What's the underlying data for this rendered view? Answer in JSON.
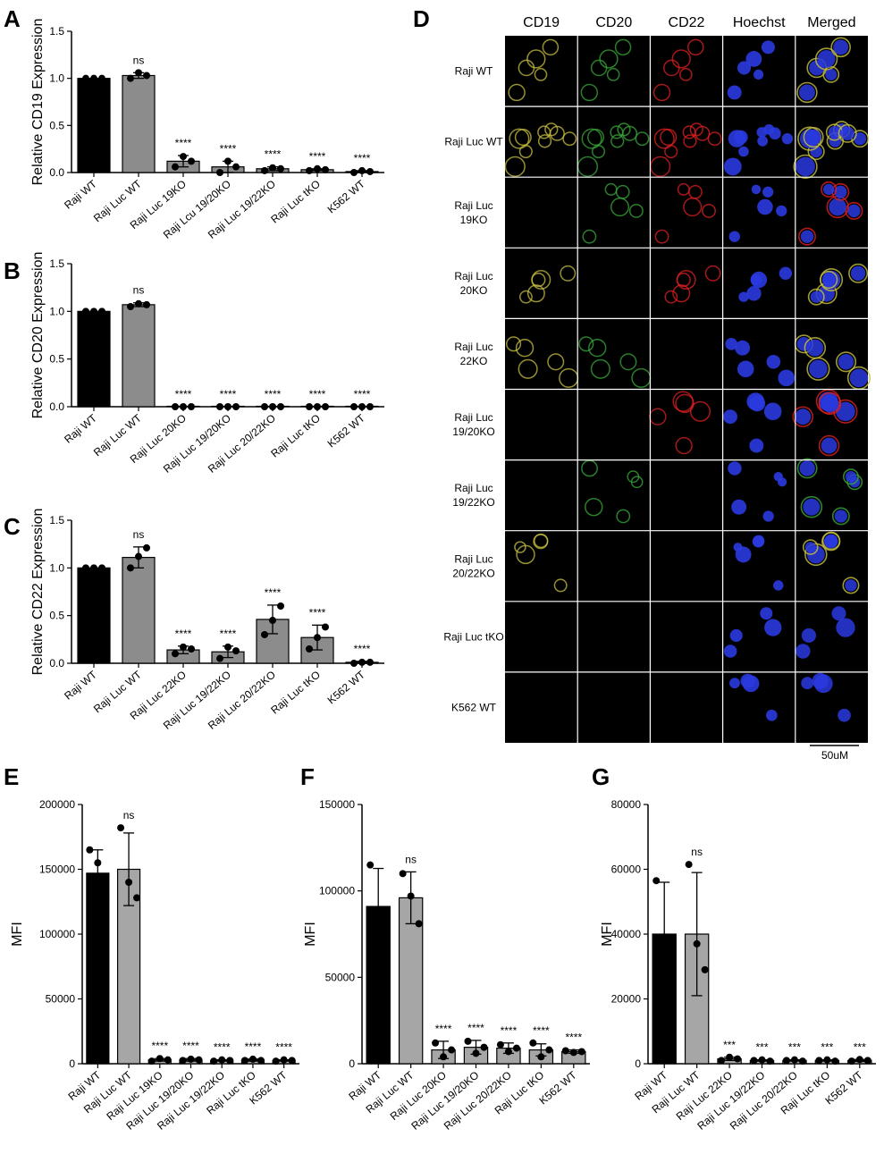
{
  "chart_data": [
    {
      "panel": "A",
      "type": "bar",
      "ylabel": "Relative CD19  Expression",
      "ylim": [
        0,
        1.5
      ],
      "yticks": [
        "0.0",
        "0.5",
        "1.0",
        "1.5"
      ],
      "categories": [
        "Raji WT",
        "Raji Luc WT",
        "Raji Luc 19KO",
        "Raji Lcu 19/20KO",
        "Raji Luc 19/22KO",
        "Raji Luc tKO",
        "K562 WT"
      ],
      "values": [
        1.0,
        1.03,
        0.12,
        0.06,
        0.04,
        0.03,
        0.01
      ],
      "errors": [
        0.0,
        0.03,
        0.06,
        0.06,
        0.02,
        0.01,
        0.01
      ],
      "points": [
        [
          1.0,
          1.0,
          1.0
        ],
        [
          1.0,
          1.06,
          1.03
        ],
        [
          0.06,
          0.17,
          0.12
        ],
        [
          0.0,
          0.12,
          0.06
        ],
        [
          0.02,
          0.05,
          0.04
        ],
        [
          0.02,
          0.04,
          0.03
        ],
        [
          0.0,
          0.02,
          0.01
        ]
      ],
      "significance": [
        "",
        "ns",
        "****",
        "****",
        "****",
        "****",
        "****"
      ],
      "colors": [
        "#000000",
        "#8c8c8c",
        "#8c8c8c",
        "#8c8c8c",
        "#8c8c8c",
        "#8c8c8c",
        "#8c8c8c"
      ]
    },
    {
      "panel": "B",
      "type": "bar",
      "ylabel": "Relative  CD20  Expression",
      "ylim": [
        0,
        1.5
      ],
      "yticks": [
        "0.0",
        "0.5",
        "1.0",
        "1.5"
      ],
      "categories": [
        "Raji WT",
        "Raji Luc WT",
        "Raji Luc 20KO",
        "Raji Luc 19/20KO",
        "Raji Luc 20/22KO",
        "Raji Luc tKO",
        "K562 WT"
      ],
      "values": [
        1.0,
        1.07,
        0.0,
        0.0,
        0.0,
        0.0,
        0.0
      ],
      "errors": [
        0.0,
        0.02,
        0.0,
        0.0,
        0.0,
        0.0,
        0.0
      ],
      "points": [
        [
          1.0,
          1.0,
          1.0
        ],
        [
          1.05,
          1.08,
          1.07
        ],
        [
          0,
          0,
          0
        ],
        [
          0,
          0,
          0
        ],
        [
          0,
          0,
          0
        ],
        [
          0,
          0,
          0
        ],
        [
          0,
          0,
          0
        ]
      ],
      "significance": [
        "",
        "ns",
        "****",
        "****",
        "****",
        "****",
        "****"
      ],
      "colors": [
        "#000000",
        "#8c8c8c",
        "#8c8c8c",
        "#8c8c8c",
        "#8c8c8c",
        "#8c8c8c",
        "#8c8c8c"
      ]
    },
    {
      "panel": "C",
      "type": "bar",
      "ylabel": "Relative CD22  Expression",
      "ylim": [
        0,
        1.5
      ],
      "yticks": [
        "0.0",
        "0.5",
        "1.0",
        "1.5"
      ],
      "categories": [
        "Raji WT",
        "Raji Luc WT",
        "Raji Luc 22KO",
        "Raji Luc 19/22KO",
        "Raji Luc 20/22KO",
        "Raji Luc tKO",
        "K562 WT"
      ],
      "values": [
        1.0,
        1.11,
        0.14,
        0.12,
        0.46,
        0.27,
        0.01
      ],
      "errors": [
        0.0,
        0.11,
        0.04,
        0.06,
        0.15,
        0.13,
        0.01
      ],
      "points": [
        [
          1.0,
          1.0,
          1.0
        ],
        [
          1.0,
          1.12,
          1.21
        ],
        [
          0.1,
          0.17,
          0.15
        ],
        [
          0.05,
          0.17,
          0.13
        ],
        [
          0.3,
          0.45,
          0.6
        ],
        [
          0.15,
          0.27,
          0.38
        ],
        [
          0.0,
          0.01,
          0.01
        ]
      ],
      "significance": [
        "",
        "ns",
        "****",
        "****",
        "****",
        "****",
        "****"
      ],
      "colors": [
        "#000000",
        "#8c8c8c",
        "#8c8c8c",
        "#8c8c8c",
        "#8c8c8c",
        "#8c8c8c",
        "#ffffff"
      ]
    },
    {
      "panel": "E",
      "type": "bar",
      "ylabel": "MFI",
      "ylim": [
        0,
        200000
      ],
      "yticks": [
        "0",
        "50000",
        "100000",
        "150000",
        "200000"
      ],
      "categories": [
        "Raji WT",
        "Raji Luc WT",
        "Raji Luc 19KO",
        "Raji Luc 19/20KO",
        "Raji Luc 19/22KO",
        "Raji Luc tKO",
        "K562 WT"
      ],
      "values": [
        147000,
        150000,
        3000,
        3000,
        2500,
        2800,
        2500
      ],
      "errors": [
        18000,
        28000,
        1000,
        1000,
        500,
        800,
        500
      ],
      "points": [
        [
          165000,
          155000,
          128000
        ],
        [
          182000,
          140000,
          128000
        ],
        [
          2000,
          4000,
          3000
        ],
        [
          2500,
          3500,
          3000
        ],
        [
          2000,
          3000,
          2500
        ],
        [
          2500,
          3500,
          2500
        ],
        [
          2000,
          3000,
          2500
        ]
      ],
      "significance": [
        "",
        "ns",
        "****",
        "****",
        "****",
        "****",
        "****"
      ],
      "colors": [
        "#000000",
        "#a6a6a6",
        "#a6a6a6",
        "#a6a6a6",
        "#a6a6a6",
        "#a6a6a6",
        "#a6a6a6"
      ]
    },
    {
      "panel": "F",
      "type": "bar",
      "ylabel": "MFI",
      "ylim": [
        0,
        150000
      ],
      "yticks": [
        "0",
        "50000",
        "100000",
        "150000"
      ],
      "categories": [
        "Raji WT",
        "Raji Luc WT",
        "Raji Luc 20KO",
        "Raji Luc 19/20KO",
        "Raji Luc 20/22KO",
        "Raji Luc tKO",
        "K562 WT"
      ],
      "values": [
        91000,
        96000,
        8000,
        9500,
        9000,
        8000,
        7000
      ],
      "errors": [
        22000,
        15000,
        5000,
        4000,
        3000,
        3500,
        1000
      ],
      "points": [
        [
          115000,
          78000,
          80000
        ],
        [
          110000,
          97000,
          81000
        ],
        [
          12000,
          4000,
          8000
        ],
        [
          13000,
          6000,
          9500
        ],
        [
          11000,
          7000,
          9000
        ],
        [
          12000,
          4000,
          8000
        ],
        [
          7500,
          6500,
          7000
        ]
      ],
      "significance": [
        "",
        "ns",
        "****",
        "****",
        "****",
        "****",
        "****"
      ],
      "colors": [
        "#000000",
        "#a6a6a6",
        "#a6a6a6",
        "#a6a6a6",
        "#a6a6a6",
        "#a6a6a6",
        "#a6a6a6"
      ]
    },
    {
      "panel": "G",
      "type": "bar",
      "ylabel": "MFI",
      "ylim": [
        0,
        80000
      ],
      "yticks": [
        "0",
        "20000",
        "40000",
        "60000",
        "80000"
      ],
      "categories": [
        "Raji WT",
        "Raji Luc WT",
        "Raji Luc 22KO",
        "Raji Luc 19/22KO",
        "Raji Luc 20/22KO",
        "Raji Luc tKO",
        "K562 WT"
      ],
      "values": [
        40000,
        40000,
        1500,
        1000,
        1000,
        1000,
        1000
      ],
      "errors": [
        16000,
        19000,
        500,
        200,
        200,
        200,
        300
      ],
      "points": [
        [
          56500,
          31000,
          32000
        ],
        [
          61500,
          37000,
          29000
        ],
        [
          1000,
          2000,
          1500
        ],
        [
          1000,
          1200,
          800
        ],
        [
          1000,
          1200,
          800
        ],
        [
          1000,
          1200,
          800
        ],
        [
          800,
          1300,
          1000
        ]
      ],
      "significance": [
        "",
        "ns",
        "***",
        "***",
        "***",
        "***",
        "***"
      ],
      "colors": [
        "#000000",
        "#a6a6a6",
        "#a6a6a6",
        "#a6a6a6",
        "#a6a6a6",
        "#a6a6a6",
        "#a6a6a6"
      ]
    }
  ],
  "micrograph": {
    "panel": "D",
    "columns": [
      "CD19",
      "CD20",
      "CD22",
      "Hoechst",
      "Merged"
    ],
    "rows": [
      "Raji WT",
      "Raji Luc WT",
      "Raji Luc\n19KO",
      "Raji Luc\n20KO",
      "Raji Luc\n22KO",
      "Raji Luc\n19/20KO",
      "Raji Luc\n19/22KO",
      "Raji Luc\n20/22KO",
      "Raji Luc tKO",
      "K562 WT"
    ],
    "signal": [
      [
        1,
        1,
        1,
        1,
        1
      ],
      [
        1,
        1,
        1,
        1,
        1
      ],
      [
        0,
        1,
        1,
        1,
        1
      ],
      [
        1,
        0,
        1,
        1,
        1
      ],
      [
        1,
        1,
        0,
        1,
        1
      ],
      [
        0,
        0,
        1,
        1,
        1
      ],
      [
        0,
        1,
        0,
        1,
        1
      ],
      [
        1,
        0,
        0,
        1,
        1
      ],
      [
        0,
        0,
        0,
        1,
        1
      ],
      [
        0,
        0,
        0,
        1,
        1
      ]
    ],
    "channel_colors": [
      "#c8c040",
      "#3aa83a",
      "#e02020",
      "#2a3ae0",
      "mixed"
    ],
    "scale_bar": "50uM"
  },
  "panel_labels": [
    "A",
    "B",
    "C",
    "D",
    "E",
    "F",
    "G"
  ]
}
